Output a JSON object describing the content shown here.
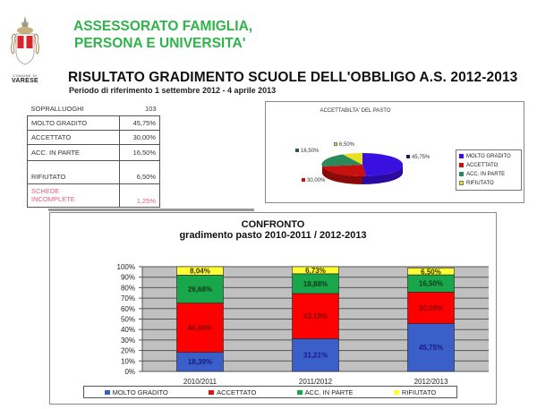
{
  "logo": {
    "small_text": "COMUNE DI",
    "city": "VARESE",
    "colors": {
      "red": "#d9242b",
      "gold": "#a88b5a"
    }
  },
  "header": {
    "department_line1": "ASSESSORATO FAMIGLIA,",
    "department_line2": "PERSONA E UNIVERSITA'",
    "title": "RISULTATO GRADIMENTO SCUOLE DELL'OBBLIGO A.S. 2012-2013",
    "period": "Periodo di riferimento 1 settembre 2012 - 4 aprile 2013"
  },
  "stats": {
    "sopralluoghi_label": "SOPRALLUOGHI",
    "sopralluoghi_value": "103",
    "rows": [
      {
        "label": "MOLTO GRADITO",
        "value": "45,75%"
      },
      {
        "label": "ACCETTATO",
        "value": "30,00%"
      },
      {
        "label": "ACC. IN PARTE",
        "value": "16,50%"
      },
      {
        "label": "RIFIUTATO",
        "value": "6,50%"
      }
    ],
    "incomplete_label_line1": "SCHEDE",
    "incomplete_label_line2": "INCOMPLETE",
    "incomplete_value": "1,25%"
  },
  "colors": {
    "molto_gradito": "#3a5fc8",
    "accettato": "#ff0000",
    "acc_in_parte": "#1aa64a",
    "rifiutato": "#ffff33",
    "pie_molto_gradito": "#3a10e0",
    "pie_accettato": "#c81010",
    "pie_acc_in_parte": "#2a8a5a",
    "pie_rifiutato": "#e8e020",
    "header_green": "#2fb34a",
    "plot_bg": "#c0c0c0"
  },
  "chart_data": [
    {
      "type": "pie",
      "title": "ACCETTABILTA' DEL PASTO",
      "categories": [
        "MOLTO GRADITO",
        "ACCETTATO",
        "ACC. IN PARTE",
        "RIFIUTATO"
      ],
      "values": [
        45.75,
        30.0,
        16.5,
        6.5
      ],
      "labels": [
        "45,75%",
        "30,00%",
        "16,50%",
        "6,50%"
      ],
      "legend_position": "right"
    },
    {
      "type": "bar",
      "stacked": true,
      "title": "CONFRONTO",
      "subtitle": "gradimento pasto 2010-2011 / 2012-2013",
      "categories": [
        "2010/2011",
        "2011/2012",
        "2012/2013"
      ],
      "series": [
        {
          "name": "MOLTO GRADITO",
          "values": [
            18.39,
            31.21,
            45.75
          ],
          "labels": [
            "18,39%",
            "31,21%",
            "45,75%"
          ]
        },
        {
          "name": "ACCETTATO",
          "values": [
            46.89,
            43.18,
            30.0
          ],
          "labels": [
            "46,89%",
            "43,18%",
            "30,00%"
          ]
        },
        {
          "name": "ACC. IN PARTE",
          "values": [
            26.68,
            18.88,
            16.5
          ],
          "labels": [
            "26,68%",
            "18,88%",
            "16,50%"
          ]
        },
        {
          "name": "RIFIUTATO",
          "values": [
            8.04,
            6.73,
            6.5
          ],
          "labels": [
            "8,04%",
            "6,73%",
            "6,50%"
          ]
        }
      ],
      "yticks": [
        "0%",
        "10%",
        "20%",
        "30%",
        "40%",
        "50%",
        "60%",
        "70%",
        "80%",
        "90%",
        "100%"
      ],
      "ylim": [
        0,
        100
      ],
      "xlabel": "",
      "ylabel": "",
      "grid": true,
      "legend_position": "bottom"
    }
  ]
}
